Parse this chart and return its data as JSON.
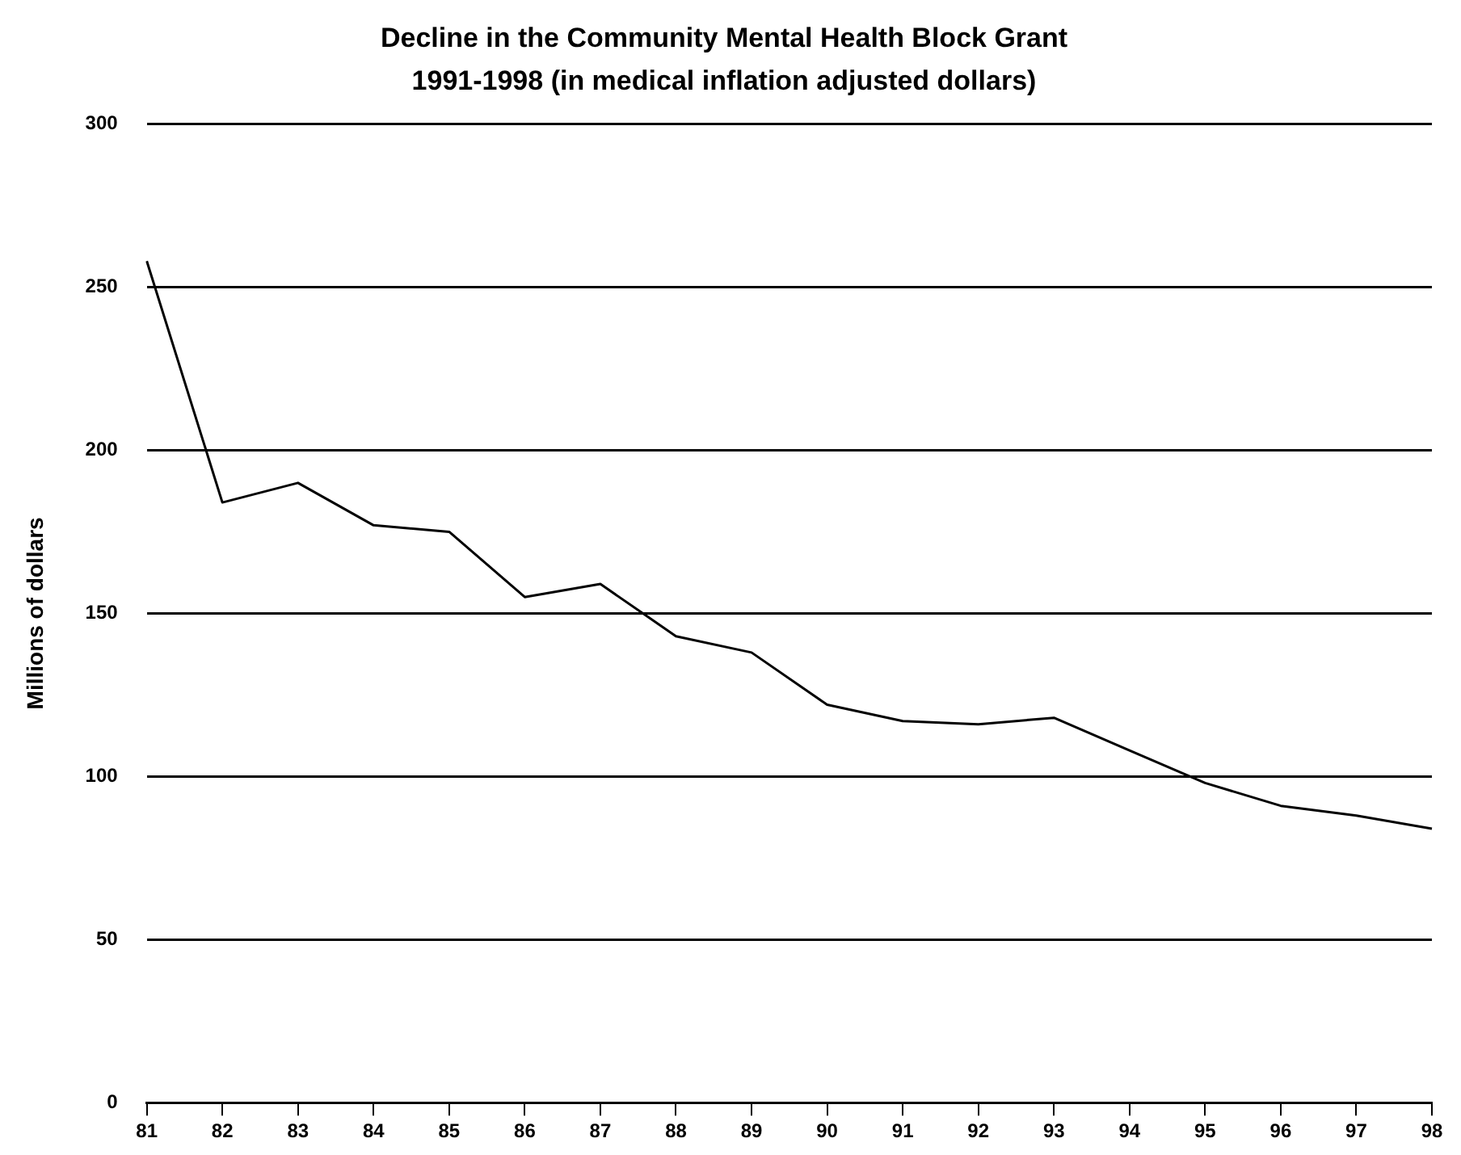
{
  "chart_data": {
    "type": "line",
    "title": "Decline in the Community Mental Health Block Grant",
    "subtitle": "1991-1998 (in medical inflation adjusted dollars)",
    "ylabel": "Millions of dollars",
    "categories": [
      "81",
      "82",
      "83",
      "84",
      "85",
      "86",
      "87",
      "88",
      "89",
      "90",
      "91",
      "92",
      "93",
      "94",
      "95",
      "96",
      "97",
      "98"
    ],
    "series": [
      {
        "color": "#000000",
        "values": [
          258,
          184,
          190,
          177,
          175,
          155,
          159,
          143,
          138,
          122,
          117,
          116,
          118,
          108,
          98,
          91,
          88,
          84
        ]
      }
    ],
    "ylim": [
      0,
      300
    ],
    "yticks": [
      0,
      50,
      100,
      150,
      200,
      250,
      300
    ],
    "grid": "y",
    "legend": false,
    "marker": "none",
    "line_style": "solid"
  }
}
